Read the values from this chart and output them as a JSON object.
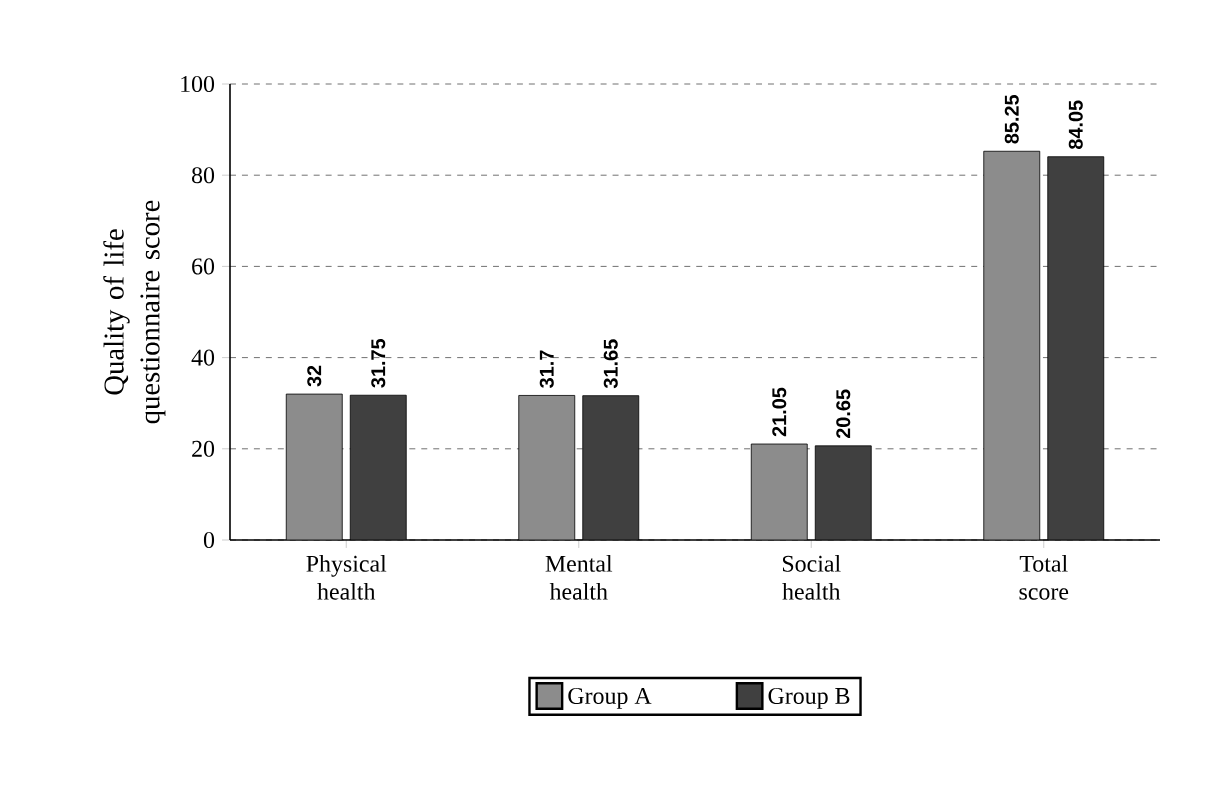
{
  "chart_data": {
    "type": "bar",
    "ylabel": "Quality of life questionnaire score",
    "categories": [
      "Physical health",
      "Mental health",
      "Social health",
      "Total score"
    ],
    "series": [
      {
        "name": "Group A",
        "color": "#8c8c8c",
        "values": [
          32,
          31.7,
          21.05,
          85.25
        ]
      },
      {
        "name": "Group B",
        "color": "#404040",
        "values": [
          31.75,
          31.65,
          20.65,
          84.05
        ]
      }
    ],
    "ylim": [
      0,
      100
    ],
    "yticks": [
      0,
      20,
      40,
      60,
      80,
      100
    ],
    "grid": "y",
    "legend": "bottom",
    "data_labels": true
  }
}
